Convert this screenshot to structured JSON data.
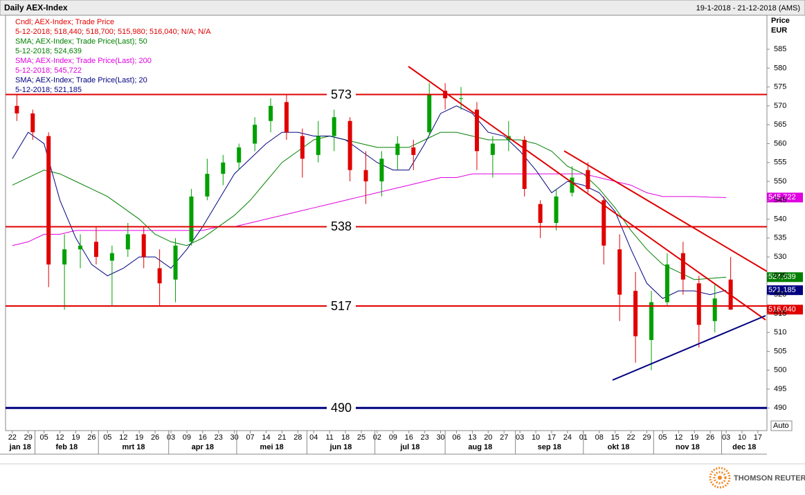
{
  "chart_data": {
    "type": "candlestick",
    "title": "Daily AEX-Index",
    "date_range": "19-1-2018 - 21-12-2018 (AMS)",
    "y_label": "Price",
    "y_unit": "EUR",
    "scale_button": "Auto",
    "source": "THOMSON REUTERS",
    "candle_name": "Cndl; AEX-Index; Trade Price",
    "candle_last": "5-12-2018; 518,440; 518,700; 515,980; 516,040; N/A; N/A",
    "candle_tag": {
      "value": 516.04,
      "label": "516,040"
    },
    "up_color": "#00a000",
    "down_color": "#e00000",
    "xlim": [
      "2018-01-19",
      "2018-12-21"
    ],
    "ylim": [
      484,
      594
    ],
    "yticks": [
      490,
      495,
      500,
      505,
      510,
      515,
      520,
      525,
      530,
      535,
      540,
      545,
      550,
      555,
      560,
      565,
      570,
      575,
      580,
      585
    ],
    "xticks": [
      {
        "value": "2018-01-22",
        "label": "22"
      },
      {
        "value": "2018-01-29",
        "label": "29"
      },
      {
        "value": "2018-02-05",
        "label": "05"
      },
      {
        "value": "2018-02-12",
        "label": "12"
      },
      {
        "value": "2018-02-19",
        "label": "19"
      },
      {
        "value": "2018-02-26",
        "label": "26"
      },
      {
        "value": "2018-03-05",
        "label": "05"
      },
      {
        "value": "2018-03-12",
        "label": "12"
      },
      {
        "value": "2018-03-19",
        "label": "19"
      },
      {
        "value": "2018-03-26",
        "label": "26"
      },
      {
        "value": "2018-04-02",
        "label": "03"
      },
      {
        "value": "2018-04-09",
        "label": "09"
      },
      {
        "value": "2018-04-16",
        "label": "16"
      },
      {
        "value": "2018-04-23",
        "label": "23"
      },
      {
        "value": "2018-04-30",
        "label": "30"
      },
      {
        "value": "2018-05-07",
        "label": "07"
      },
      {
        "value": "2018-05-14",
        "label": "14"
      },
      {
        "value": "2018-05-21",
        "label": "21"
      },
      {
        "value": "2018-05-28",
        "label": "28"
      },
      {
        "value": "2018-06-04",
        "label": "04"
      },
      {
        "value": "2018-06-11",
        "label": "11"
      },
      {
        "value": "2018-06-18",
        "label": "18"
      },
      {
        "value": "2018-06-25",
        "label": "25"
      },
      {
        "value": "2018-07-02",
        "label": "02"
      },
      {
        "value": "2018-07-09",
        "label": "09"
      },
      {
        "value": "2018-07-16",
        "label": "16"
      },
      {
        "value": "2018-07-23",
        "label": "23"
      },
      {
        "value": "2018-07-30",
        "label": "30"
      },
      {
        "value": "2018-08-06",
        "label": "06"
      },
      {
        "value": "2018-08-13",
        "label": "13"
      },
      {
        "value": "2018-08-20",
        "label": "20"
      },
      {
        "value": "2018-08-27",
        "label": "27"
      },
      {
        "value": "2018-09-03",
        "label": "03"
      },
      {
        "value": "2018-09-10",
        "label": "10"
      },
      {
        "value": "2018-09-17",
        "label": "17"
      },
      {
        "value": "2018-09-24",
        "label": "24"
      },
      {
        "value": "2018-10-01",
        "label": "01"
      },
      {
        "value": "2018-10-08",
        "label": "08"
      },
      {
        "value": "2018-10-15",
        "label": "15"
      },
      {
        "value": "2018-10-22",
        "label": "22"
      },
      {
        "value": "2018-10-29",
        "label": "29"
      },
      {
        "value": "2018-11-05",
        "label": "05"
      },
      {
        "value": "2018-11-12",
        "label": "12"
      },
      {
        "value": "2018-11-19",
        "label": "19"
      },
      {
        "value": "2018-11-26",
        "label": "26"
      },
      {
        "value": "2018-12-03",
        "label": "03"
      },
      {
        "value": "2018-12-10",
        "label": "10"
      },
      {
        "value": "2018-12-17",
        "label": "17"
      }
    ],
    "months": [
      {
        "value": "2018-01-01",
        "label": "jan 18"
      },
      {
        "value": "2018-02-01",
        "label": "feb 18"
      },
      {
        "value": "2018-03-01",
        "label": "mrt 18"
      },
      {
        "value": "2018-04-01",
        "label": "apr 18"
      },
      {
        "value": "2018-05-01",
        "label": "mei 18"
      },
      {
        "value": "2018-06-01",
        "label": "jun 18"
      },
      {
        "value": "2018-07-01",
        "label": "jul 18"
      },
      {
        "value": "2018-08-01",
        "label": "aug 18"
      },
      {
        "value": "2018-09-01",
        "label": "sep 18"
      },
      {
        "value": "2018-10-01",
        "label": "okt 18"
      },
      {
        "value": "2018-11-01",
        "label": "nov 18"
      },
      {
        "value": "2018-12-01",
        "label": "dec 18"
      }
    ],
    "x": [
      "2018-01-22",
      "2018-01-29",
      "2018-02-05",
      "2018-02-12",
      "2018-02-19",
      "2018-02-26",
      "2018-03-05",
      "2018-03-12",
      "2018-03-19",
      "2018-03-26",
      "2018-04-02",
      "2018-04-09",
      "2018-04-16",
      "2018-04-23",
      "2018-04-30",
      "2018-05-07",
      "2018-05-14",
      "2018-05-21",
      "2018-05-28",
      "2018-06-04",
      "2018-06-11",
      "2018-06-18",
      "2018-06-25",
      "2018-07-02",
      "2018-07-09",
      "2018-07-16",
      "2018-07-23",
      "2018-07-30",
      "2018-08-06",
      "2018-08-13",
      "2018-08-20",
      "2018-08-27",
      "2018-09-03",
      "2018-09-10",
      "2018-09-17",
      "2018-09-24",
      "2018-10-01",
      "2018-10-08",
      "2018-10-15",
      "2018-10-22",
      "2018-10-29",
      "2018-11-05",
      "2018-11-12",
      "2018-11-19",
      "2018-11-26",
      "2018-12-03"
    ],
    "open": [
      570,
      568,
      562,
      528,
      532,
      534,
      529,
      532,
      536,
      527,
      524,
      534,
      546,
      552,
      555,
      560,
      566,
      571,
      562,
      557,
      562,
      566,
      553,
      550,
      557,
      559,
      563,
      574,
      572,
      569,
      557,
      561,
      561,
      544,
      539,
      547,
      553,
      545,
      532,
      521,
      508,
      518,
      531,
      523,
      513,
      524
    ],
    "high": [
      573,
      569,
      563,
      536,
      536,
      538,
      533,
      539,
      538,
      532,
      535,
      548,
      556,
      557,
      560,
      567,
      572,
      573,
      564,
      566,
      569,
      567,
      558,
      558,
      562,
      561,
      576,
      576,
      575,
      571,
      562,
      566,
      562,
      545,
      548,
      554,
      555,
      546,
      536,
      526,
      521,
      531,
      534,
      525,
      523,
      530
    ],
    "low": [
      566,
      561,
      522,
      516,
      527,
      528,
      517,
      530,
      527,
      517,
      518,
      533,
      545,
      549,
      553,
      558,
      563,
      561,
      551,
      555,
      558,
      550,
      544,
      546,
      553,
      553,
      562,
      569,
      569,
      553,
      551,
      558,
      546,
      535,
      537,
      546,
      547,
      528,
      513,
      502,
      500,
      517,
      520,
      506,
      510,
      515.98
    ],
    "close": [
      568,
      563,
      528,
      532,
      533,
      530,
      531,
      536,
      530,
      523,
      533,
      546,
      552,
      555,
      559,
      565,
      570,
      563,
      556,
      562,
      567,
      553,
      550,
      556,
      560,
      557,
      573,
      572,
      572,
      558,
      560,
      562,
      548,
      539,
      546,
      551,
      548,
      533,
      520,
      509,
      518,
      528,
      524,
      512,
      519,
      516.04
    ],
    "series": [
      {
        "name": "SMA; AEX-Index; Trade Price(Last);  50",
        "last": "5-12-2018; 524,639",
        "color": "#008000",
        "tag": {
          "value": 524.639,
          "label": "524,639"
        },
        "values": [
          549,
          551,
          553,
          552,
          550,
          548,
          546,
          543,
          540,
          536,
          534,
          533,
          535,
          538,
          541,
          545,
          550,
          555,
          558,
          561,
          562,
          561,
          560,
          559,
          559,
          559,
          561,
          563,
          563,
          562,
          561,
          561,
          561,
          560,
          558,
          554,
          552,
          548,
          543,
          537,
          532,
          528,
          526,
          524,
          524.3,
          524.639
        ]
      },
      {
        "name": "SMA; AEX-Index; Trade Price(Last);  200",
        "last": "5-12-2018; 545,722",
        "color": "#e000e0",
        "tag": {
          "value": 545.722,
          "label": "545,722"
        },
        "values": [
          533,
          534,
          536,
          536,
          537,
          537,
          537,
          537,
          537,
          537,
          537,
          537,
          537,
          538,
          538,
          539,
          540,
          541,
          542,
          543,
          544,
          545,
          546,
          547,
          548,
          549,
          550,
          551,
          551,
          552,
          552,
          552,
          552,
          552,
          552,
          552,
          552,
          551,
          550,
          549,
          547,
          546,
          546,
          546,
          545.8,
          545.722
        ]
      },
      {
        "name": "SMA; AEX-Index; Trade Price(Last);  20",
        "last": "5-12-2018; 521,185",
        "color": "#000080",
        "tag": {
          "value": 521.185,
          "label": "521,185"
        },
        "values": [
          556,
          563,
          560,
          545,
          535,
          528,
          525,
          527,
          530,
          530,
          527,
          532,
          538,
          545,
          552,
          556,
          560,
          563,
          563,
          562,
          562,
          561,
          558,
          555,
          553,
          553,
          560,
          568,
          570,
          568,
          563,
          562,
          558,
          553,
          547,
          550,
          549,
          547,
          542,
          532,
          523,
          519,
          521,
          521,
          520,
          521.185
        ]
      }
    ],
    "levels": [
      {
        "value": 573,
        "color": "#e00000"
      },
      {
        "value": 538,
        "color": "#e00000"
      },
      {
        "value": 517,
        "color": "#e00000"
      },
      {
        "value": 490,
        "color": "#000080"
      }
    ]
  }
}
